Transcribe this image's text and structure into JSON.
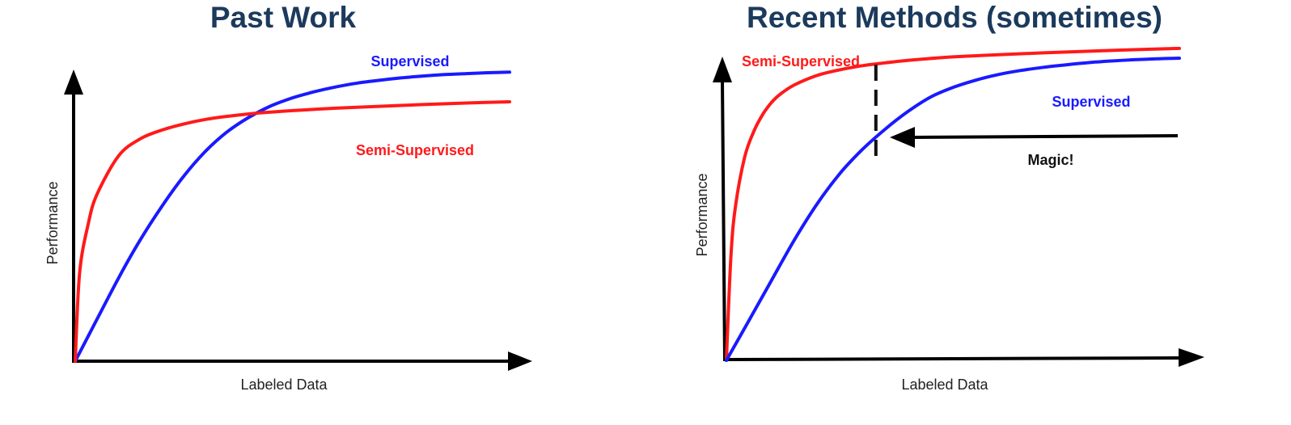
{
  "colors": {
    "title": "#1b3a5c",
    "supervised": "#1a1aff",
    "semi_supervised": "#ff1a1a",
    "axis": "#000000"
  },
  "chart_data": [
    {
      "type": "line",
      "title": "Past Work",
      "xlabel": "Labeled Data",
      "ylabel": "Performance",
      "xticks": false,
      "yticks": false,
      "grid": false,
      "xlim": [
        0,
        100
      ],
      "ylim": [
        0,
        100
      ],
      "series": [
        {
          "name": "Supervised",
          "color": "#1a1aff",
          "x": [
            0,
            5,
            10,
            15,
            20,
            25,
            30,
            35,
            40,
            45,
            50,
            55,
            60,
            65,
            70,
            75,
            80,
            85,
            90,
            95,
            100
          ],
          "y": [
            0,
            13.8,
            27.5,
            40.1,
            51.2,
            61.1,
            69.3,
            75.7,
            80.5,
            84.2,
            86.9,
            88.9,
            90.5,
            91.8,
            92.7,
            93.5,
            94.1,
            94.6,
            94.9,
            95.2,
            95.4
          ]
        },
        {
          "name": "Semi-Supervised",
          "color": "#ff1a1a",
          "x": [
            0,
            1,
            3,
            5,
            10,
            15,
            20,
            25,
            30,
            35,
            40,
            45,
            50,
            60,
            70,
            80,
            90,
            100
          ],
          "y": [
            0,
            29.1,
            45.3,
            55.0,
            67.8,
            73.4,
            76.3,
            78.3,
            79.8,
            80.8,
            81.6,
            82.2,
            82.7,
            83.5,
            84.1,
            84.7,
            85.2,
            85.6
          ]
        }
      ]
    },
    {
      "type": "line",
      "title": "Recent Methods (sometimes)",
      "xlabel": "Labeled Data",
      "ylabel": "Performance",
      "xticks": false,
      "yticks": false,
      "grid": false,
      "xlim": [
        0,
        100
      ],
      "ylim": [
        0,
        100
      ],
      "series": [
        {
          "name": "Semi-Supervised",
          "color": "#ff1a1a",
          "x": [
            0,
            1,
            2,
            4,
            6,
            8,
            10,
            12,
            15,
            20,
            25,
            30,
            35,
            40,
            50,
            60,
            70,
            80,
            90,
            100
          ],
          "y": [
            0,
            33.0,
            48.8,
            64.3,
            72.5,
            78.0,
            81.9,
            84.6,
            87.4,
            90.4,
            92.2,
            93.5,
            94.4,
            95.2,
            96.3,
            97.0,
            97.6,
            98.1,
            98.6,
            99.0
          ]
        },
        {
          "name": "Supervised",
          "color": "#1a1aff",
          "x": [
            0,
            5,
            10,
            15,
            20,
            25,
            30,
            35,
            40,
            45,
            50,
            55,
            60,
            65,
            70,
            75,
            80,
            85,
            90,
            95,
            100
          ],
          "y": [
            0,
            12.7,
            25.5,
            38.2,
            49.6,
            59.2,
            66.9,
            73.3,
            78.9,
            83.5,
            86.6,
            88.9,
            90.7,
            92.0,
            93.0,
            93.8,
            94.5,
            95.0,
            95.4,
            95.7,
            95.9
          ]
        }
      ],
      "annotations": {
        "label": "Magic!",
        "dashed_line_x": 33,
        "arrow_from_x": 100,
        "arrow_to_x": 35,
        "arrow_y": 73
      }
    }
  ]
}
